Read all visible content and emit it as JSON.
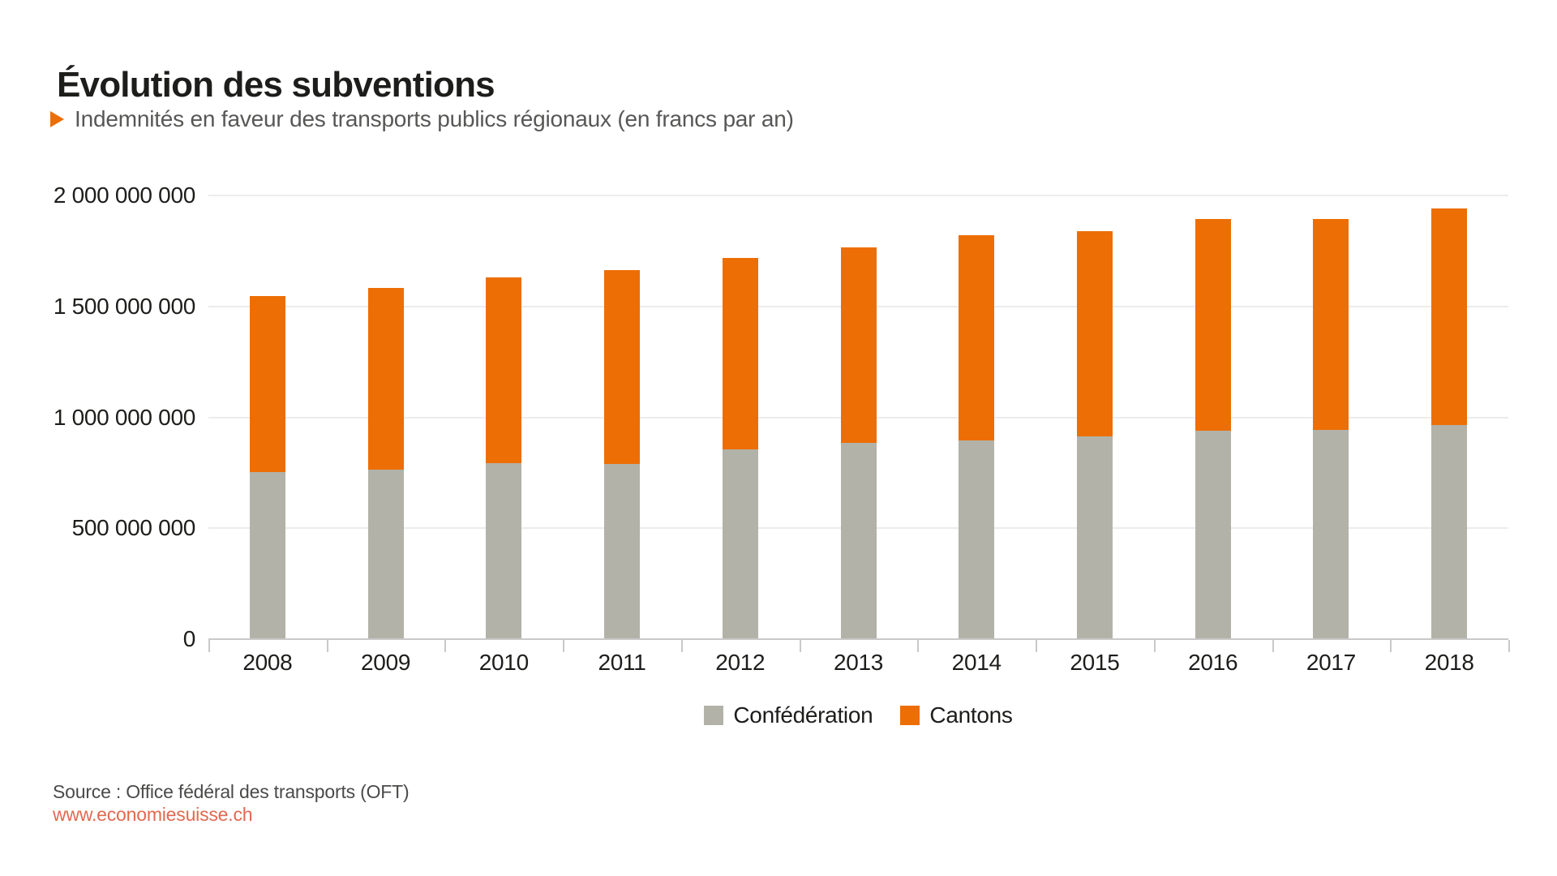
{
  "header": {
    "title": "Évolution des subventions",
    "subtitle": "Indemnités en faveur des transports publics régionaux (en francs par an)"
  },
  "chart_data": {
    "type": "bar",
    "stacked": true,
    "title": "Évolution des subventions",
    "subtitle": "Indemnités en faveur des transports publics régionaux (en francs par an)",
    "unit": "francs par an",
    "categories": [
      "2008",
      "2009",
      "2010",
      "2011",
      "2012",
      "2013",
      "2014",
      "2015",
      "2016",
      "2017",
      "2018"
    ],
    "series": [
      {
        "name": "Confédération",
        "color": "#b2b2a8",
        "values": [
          755000000,
          765000000,
          795000000,
          790000000,
          855000000,
          885000000,
          895000000,
          915000000,
          940000000,
          945000000,
          965000000
        ]
      },
      {
        "name": "Cantons",
        "color": "#ed6e05",
        "values": [
          790000000,
          820000000,
          835000000,
          875000000,
          865000000,
          880000000,
          925000000,
          925000000,
          955000000,
          950000000,
          975000000
        ]
      }
    ],
    "totals": [
      1545000000,
      1585000000,
      1630000000,
      1665000000,
      1720000000,
      1765000000,
      1820000000,
      1840000000,
      1895000000,
      1895000000,
      1940000000
    ],
    "ylim": [
      0,
      2000000000
    ],
    "ytick_interval": 500000000,
    "ytick_labels": [
      "0",
      "500 000 000",
      "1 000 000 000",
      "1 500 000 000",
      "2 000 000 000"
    ],
    "grid": true,
    "legend_position": "bottom"
  },
  "footer": {
    "source": "Source : Office fédéral des transports (OFT)",
    "website": "www.economiesuisse.ch"
  },
  "colors": {
    "accent_orange": "#ed6e05",
    "series_gray": "#b2b2a8",
    "link": "#e2694f",
    "grid": "#ececec",
    "axis": "#c9c9c9",
    "text_dark": "#1d1d1b",
    "text_gray": "#575756"
  }
}
